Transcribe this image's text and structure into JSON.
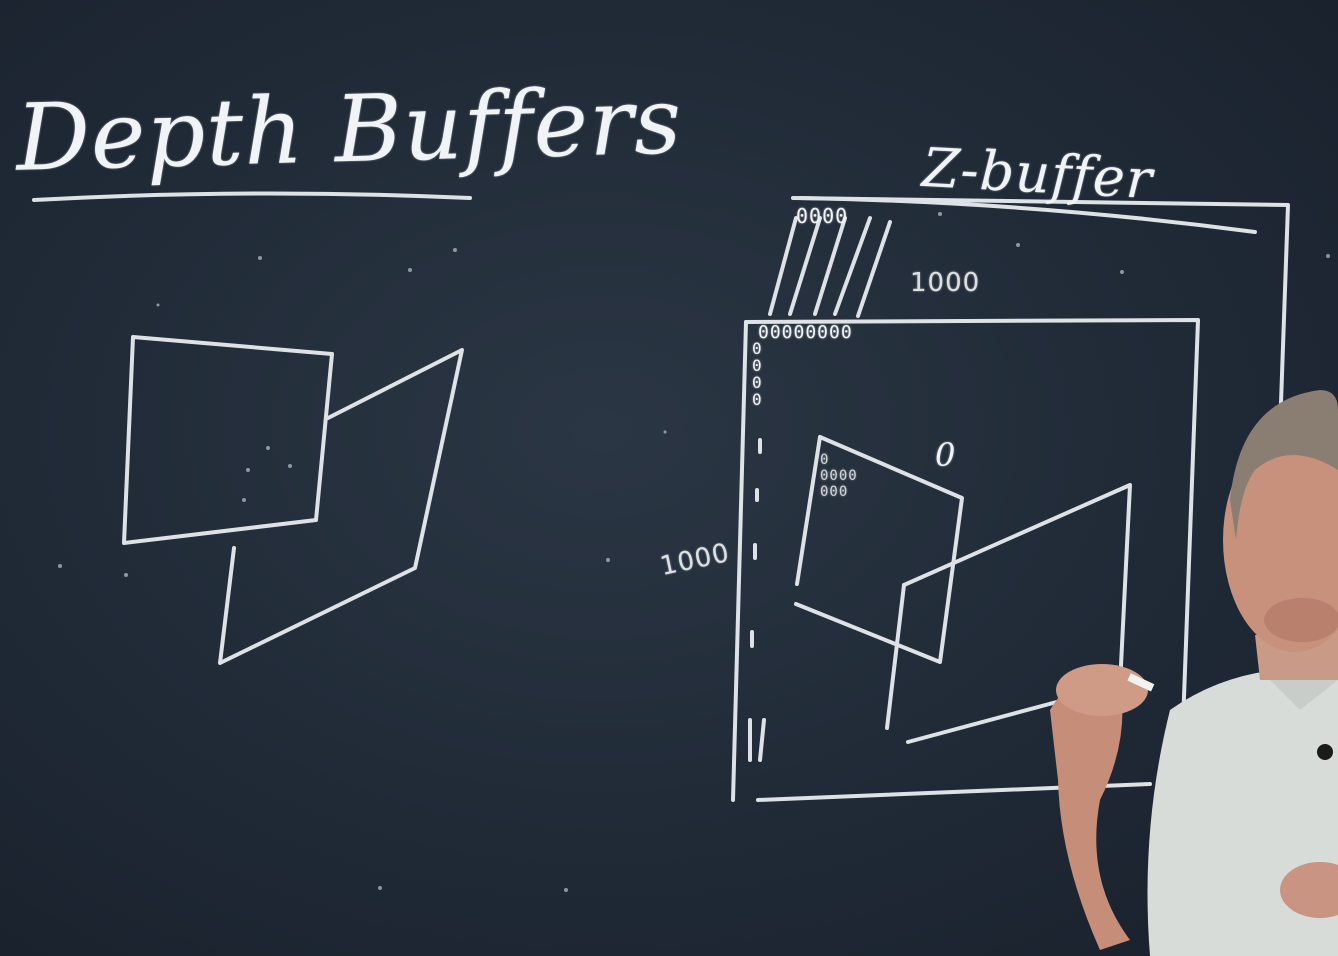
{
  "board": {
    "title_left": "Depth Buffers",
    "title_right": "Z-buffer",
    "labels": {
      "top_zeros": "0000",
      "top_1000": "1000",
      "row_zeros": "00000000",
      "col_zeros": "0\n0\n0\n0",
      "left_1000": "1000",
      "zero": "0",
      "inner_zeros": "0\n0000\n000"
    }
  },
  "colors": {
    "board": "#202a37",
    "chalk": "#f1f4f6"
  }
}
